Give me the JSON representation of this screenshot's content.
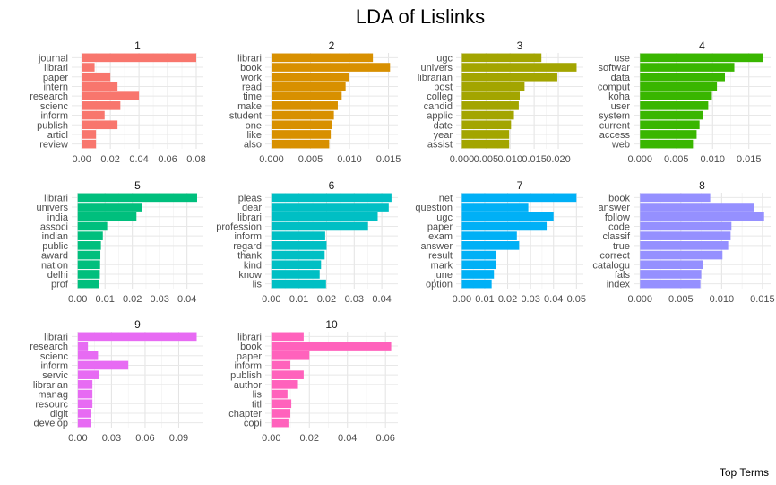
{
  "title": "LDA of Lislinks",
  "caption": "Top Terms",
  "chart_data": [
    {
      "type": "bar",
      "orientation": "horizontal",
      "facet": "1",
      "color": "#F8766D",
      "categories": [
        "journal",
        "librari",
        "paper",
        "intern",
        "research",
        "scienc",
        "inform",
        "publish",
        "articl",
        "review"
      ],
      "values": [
        0.08,
        0.009,
        0.02,
        0.025,
        0.04,
        0.027,
        0.016,
        0.025,
        0.01,
        0.01
      ],
      "xlim": [
        -0.007,
        0.085
      ],
      "ticks": [
        0.0,
        0.02,
        0.04,
        0.06,
        0.08
      ],
      "tick_labels": [
        "0.00",
        "0.02",
        "0.04",
        "0.06",
        "0.08"
      ]
    },
    {
      "type": "bar",
      "orientation": "horizontal",
      "facet": "2",
      "color": "#D89000",
      "categories": [
        "librari",
        "book",
        "work",
        "read",
        "time",
        "make",
        "student",
        "one",
        "like",
        "also"
      ],
      "values": [
        0.013,
        0.0152,
        0.01,
        0.0095,
        0.009,
        0.0085,
        0.008,
        0.0078,
        0.0076,
        0.0074
      ],
      "xlim": [
        -0.0008,
        0.0162
      ],
      "ticks": [
        0.0,
        0.005,
        0.01,
        0.015
      ],
      "tick_labels": [
        "0.000",
        "0.005",
        "0.010",
        "0.015"
      ]
    },
    {
      "type": "bar",
      "orientation": "horizontal",
      "facet": "3",
      "color": "#A3A500",
      "categories": [
        "ugc",
        "univers",
        "librarian",
        "post",
        "colleg",
        "candid",
        "applic",
        "date",
        "year",
        "assist"
      ],
      "values": [
        0.0165,
        0.0238,
        0.0198,
        0.013,
        0.012,
        0.0118,
        0.0108,
        0.0102,
        0.0098,
        0.0098
      ],
      "xlim": [
        -0.0012,
        0.0252
      ],
      "ticks": [
        0.0,
        0.005,
        0.01,
        0.015,
        0.02
      ],
      "tick_labels": [
        "0.000",
        "0.005",
        "0.010",
        "0.015",
        "0.020"
      ]
    },
    {
      "type": "bar",
      "orientation": "horizontal",
      "facet": "4",
      "color": "#39B600",
      "categories": [
        "use",
        "softwar",
        "data",
        "comput",
        "koha",
        "user",
        "system",
        "current",
        "access",
        "web"
      ],
      "values": [
        0.017,
        0.013,
        0.0117,
        0.0106,
        0.0099,
        0.0094,
        0.0087,
        0.0082,
        0.0078,
        0.0073
      ],
      "xlim": [
        -0.0009,
        0.018
      ],
      "ticks": [
        0.0,
        0.005,
        0.01,
        0.015
      ],
      "tick_labels": [
        "0.000",
        "0.005",
        "0.010",
        "0.015"
      ]
    },
    {
      "type": "bar",
      "orientation": "horizontal",
      "facet": "5",
      "color": "#00BF7D",
      "categories": [
        "librari",
        "univers",
        "india",
        "associ",
        "indian",
        "public",
        "award",
        "nation",
        "delhi",
        "prof"
      ],
      "values": [
        0.0437,
        0.0237,
        0.0215,
        0.0108,
        0.0092,
        0.0085,
        0.0083,
        0.0082,
        0.0081,
        0.0078
      ],
      "xlim": [
        -0.0022,
        0.046
      ],
      "ticks": [
        0.0,
        0.01,
        0.02,
        0.03,
        0.04
      ],
      "tick_labels": [
        "0.00",
        "0.01",
        "0.02",
        "0.03",
        "0.04"
      ]
    },
    {
      "type": "bar",
      "orientation": "horizontal",
      "facet": "6",
      "color": "#00BFC4",
      "categories": [
        "pleas",
        "dear",
        "librari",
        "profession",
        "inform",
        "regard",
        "thank",
        "kind",
        "know",
        "lis"
      ],
      "values": [
        0.0435,
        0.0425,
        0.0385,
        0.035,
        0.0195,
        0.02,
        0.0193,
        0.018,
        0.0175,
        0.0198
      ],
      "xlim": [
        -0.0022,
        0.0458
      ],
      "ticks": [
        0.0,
        0.01,
        0.02,
        0.03,
        0.04
      ],
      "tick_labels": [
        "0.00",
        "0.01",
        "0.02",
        "0.03",
        "0.04"
      ]
    },
    {
      "type": "bar",
      "orientation": "horizontal",
      "facet": "7",
      "color": "#00B0F6",
      "categories": [
        "net",
        "question",
        "ugc",
        "paper",
        "exam",
        "answer",
        "result",
        "mark",
        "june",
        "option"
      ],
      "values": [
        0.05,
        0.029,
        0.04,
        0.037,
        0.024,
        0.025,
        0.015,
        0.0148,
        0.014,
        0.013
      ],
      "xlim": [
        -0.0025,
        0.053
      ],
      "ticks": [
        0.0,
        0.01,
        0.02,
        0.03,
        0.04,
        0.05
      ],
      "tick_labels": [
        "0.00",
        "0.01",
        "0.02",
        "0.03",
        "0.04",
        "0.05"
      ]
    },
    {
      "type": "bar",
      "orientation": "horizontal",
      "facet": "8",
      "color": "#9590FF",
      "categories": [
        "book",
        "answer",
        "follow",
        "code",
        "classif",
        "true",
        "correct",
        "catalogu",
        "fals",
        "index"
      ],
      "values": [
        0.0086,
        0.014,
        0.0152,
        0.0112,
        0.0111,
        0.0108,
        0.0101,
        0.0077,
        0.0075,
        0.0074
      ],
      "xlim": [
        -0.0008,
        0.016
      ],
      "ticks": [
        0.0,
        0.005,
        0.01,
        0.015
      ],
      "tick_labels": [
        "0.000",
        "0.005",
        "0.010",
        "0.015"
      ]
    },
    {
      "type": "bar",
      "orientation": "horizontal",
      "facet": "9",
      "color": "#E76BF3",
      "categories": [
        "librari",
        "research",
        "scienc",
        "inform",
        "servic",
        "librarian",
        "manag",
        "resourc",
        "digit",
        "develop"
      ],
      "values": [
        0.106,
        0.009,
        0.018,
        0.045,
        0.019,
        0.013,
        0.013,
        0.013,
        0.012,
        0.012
      ],
      "xlim": [
        -0.0055,
        0.112
      ],
      "ticks": [
        0.0,
        0.03,
        0.06,
        0.09
      ],
      "tick_labels": [
        "0.00",
        "0.03",
        "0.06",
        "0.09"
      ]
    },
    {
      "type": "bar",
      "orientation": "horizontal",
      "facet": "10",
      "color": "#FF62BC",
      "categories": [
        "librari",
        "book",
        "paper",
        "inform",
        "publish",
        "author",
        "lis",
        "titl",
        "chapter",
        "copi"
      ],
      "values": [
        0.017,
        0.063,
        0.02,
        0.01,
        0.017,
        0.014,
        0.0085,
        0.0105,
        0.01,
        0.009
      ],
      "xlim": [
        -0.0032,
        0.0665
      ],
      "ticks": [
        0.0,
        0.02,
        0.04,
        0.06
      ],
      "tick_labels": [
        "0.00",
        "0.02",
        "0.04",
        "0.06"
      ]
    }
  ]
}
